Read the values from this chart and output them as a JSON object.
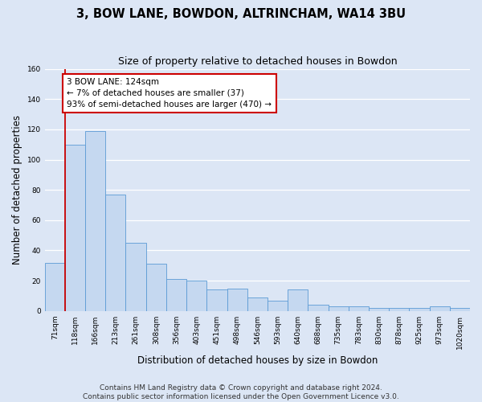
{
  "title": "3, BOW LANE, BOWDON, ALTRINCHAM, WA14 3BU",
  "subtitle": "Size of property relative to detached houses in Bowdon",
  "xlabel": "Distribution of detached houses by size in Bowdon",
  "ylabel": "Number of detached properties",
  "bin_labels": [
    "71sqm",
    "118sqm",
    "166sqm",
    "213sqm",
    "261sqm",
    "308sqm",
    "356sqm",
    "403sqm",
    "451sqm",
    "498sqm",
    "546sqm",
    "593sqm",
    "640sqm",
    "688sqm",
    "735sqm",
    "783sqm",
    "830sqm",
    "878sqm",
    "925sqm",
    "973sqm",
    "1020sqm"
  ],
  "bar_heights": [
    32,
    110,
    119,
    77,
    45,
    31,
    21,
    20,
    14,
    15,
    9,
    7,
    14,
    4,
    3,
    3,
    2,
    2,
    2,
    3,
    2
  ],
  "bar_color": "#c5d8f0",
  "bar_edge_color": "#5b9bd5",
  "bg_color": "#dce6f5",
  "plot_bg_color": "#dce6f5",
  "fig_bg_color": "#dce6f5",
  "grid_color": "#ffffff",
  "annotation_line1": "3 BOW LANE: 124sqm",
  "annotation_line2": "← 7% of detached houses are smaller (37)",
  "annotation_line3": "93% of semi-detached houses are larger (470) →",
  "annotation_box_color": "#ffffff",
  "annotation_box_edge": "#cc0000",
  "vline_color": "#cc0000",
  "ylim": [
    0,
    160
  ],
  "yticks": [
    0,
    20,
    40,
    60,
    80,
    100,
    120,
    140,
    160
  ],
  "footer": "Contains HM Land Registry data © Crown copyright and database right 2024.\nContains public sector information licensed under the Open Government Licence v3.0.",
  "title_fontsize": 10.5,
  "subtitle_fontsize": 9,
  "xlabel_fontsize": 8.5,
  "ylabel_fontsize": 8.5,
  "tick_fontsize": 6.5,
  "footer_fontsize": 6.5
}
